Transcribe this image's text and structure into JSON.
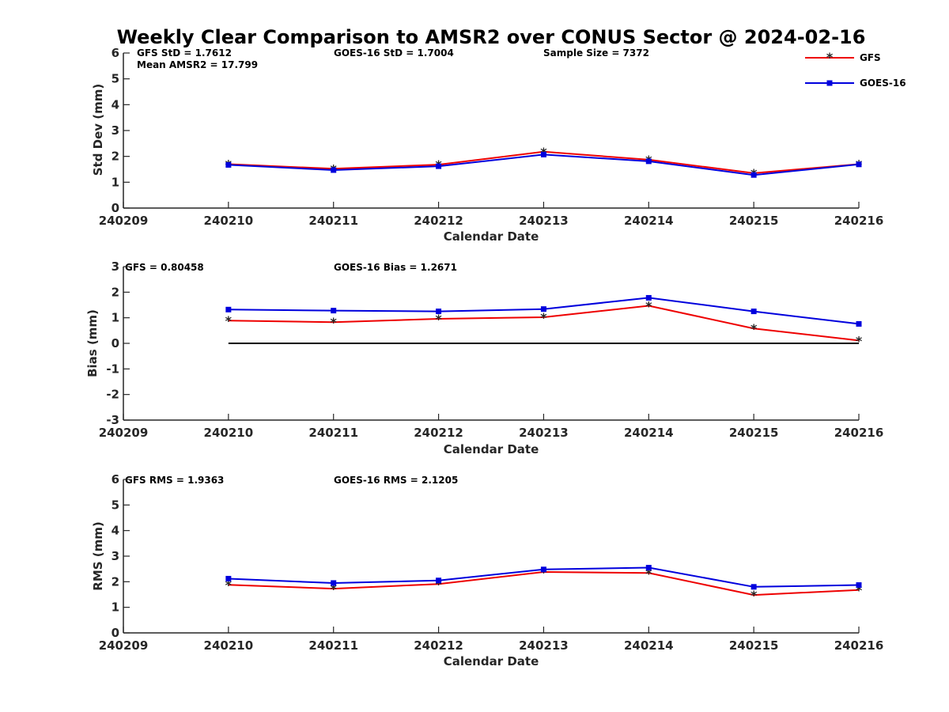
{
  "title": "Weekly Clear Comparison to AMSR2 over CONUS Sector @ 2024-02-16",
  "colors": {
    "gfs": "#ee0000",
    "goes": "#0000dd",
    "zero_line": "#000000"
  },
  "legend": {
    "placement": "top-right",
    "gfs_label": "GFS",
    "goes_label": "GOES-16"
  },
  "panels": [
    {
      "stats": [
        "GFS StD = 1.7612",
        "GOES-16 StD = 1.7004",
        "Sample Size = 7372",
        "Mean AMSR2 = 17.799"
      ]
    },
    {
      "stats": [
        "GFS = 0.80458",
        "GOES-16 Bias  = 1.2671"
      ]
    },
    {
      "stats": [
        "GFS RMS = 1.9363",
        "GOES-16 RMS = 2.1205"
      ]
    }
  ],
  "chart_data": [
    {
      "type": "line",
      "x": [
        "240210",
        "240211",
        "240212",
        "240213",
        "240214",
        "240215",
        "240216"
      ],
      "xticks": [
        "240209",
        "240210",
        "240211",
        "240212",
        "240213",
        "240214",
        "240215",
        "240216"
      ],
      "xlabel": "Calendar Date",
      "ylabel": "Std Dev (mm)",
      "ylim": [
        0,
        6
      ],
      "yticks": [
        0,
        1,
        2,
        3,
        4,
        5,
        6
      ],
      "series": [
        {
          "name": "GFS",
          "values": [
            1.7,
            1.52,
            1.68,
            2.18,
            1.87,
            1.35,
            1.7
          ]
        },
        {
          "name": "GOES-16",
          "values": [
            1.67,
            1.47,
            1.62,
            2.07,
            1.81,
            1.28,
            1.69
          ]
        }
      ]
    },
    {
      "type": "line",
      "x": [
        "240210",
        "240211",
        "240212",
        "240213",
        "240214",
        "240215",
        "240216"
      ],
      "xticks": [
        "240209",
        "240210",
        "240211",
        "240212",
        "240213",
        "240214",
        "240215",
        "240216"
      ],
      "xlabel": "Calendar Date",
      "ylabel": "Bias (mm)",
      "ylim": [
        -3,
        3
      ],
      "yticks": [
        -3,
        -2,
        -1,
        0,
        1,
        2,
        3
      ],
      "zero_line": [
        0,
        0
      ],
      "series": [
        {
          "name": "GFS",
          "values": [
            0.89,
            0.83,
            0.96,
            1.02,
            1.47,
            0.58,
            0.11
          ]
        },
        {
          "name": "GOES-16",
          "values": [
            1.32,
            1.28,
            1.25,
            1.34,
            1.78,
            1.25,
            0.76
          ]
        }
      ]
    },
    {
      "type": "line",
      "x": [
        "240210",
        "240211",
        "240212",
        "240213",
        "240214",
        "240215",
        "240216"
      ],
      "xticks": [
        "240209",
        "240210",
        "240211",
        "240212",
        "240213",
        "240214",
        "240215",
        "240216"
      ],
      "xlabel": "Calendar Date",
      "ylabel": "RMS (mm)",
      "ylim": [
        0,
        6
      ],
      "yticks": [
        0,
        1,
        2,
        3,
        4,
        5,
        6
      ],
      "series": [
        {
          "name": "GFS",
          "values": [
            1.88,
            1.73,
            1.91,
            2.38,
            2.34,
            1.48,
            1.68
          ]
        },
        {
          "name": "GOES-16",
          "values": [
            2.12,
            1.95,
            2.05,
            2.48,
            2.55,
            1.8,
            1.87
          ]
        }
      ]
    }
  ]
}
